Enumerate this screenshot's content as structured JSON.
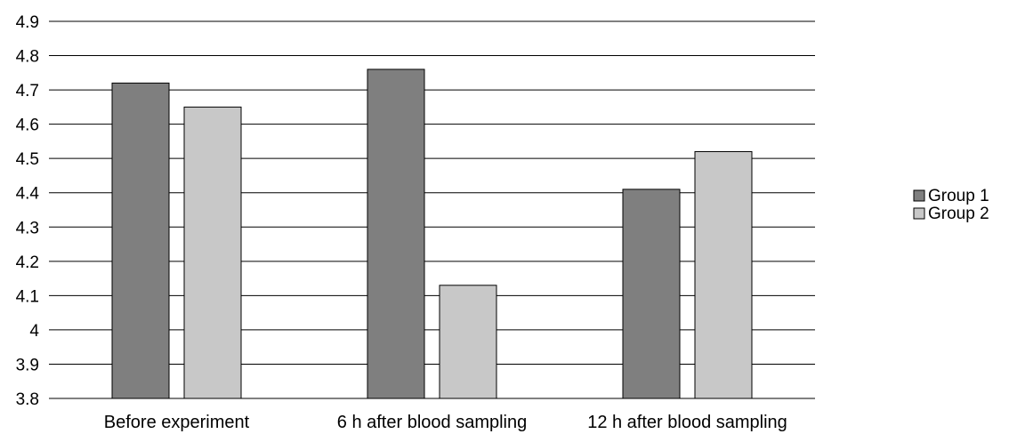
{
  "chart_data": {
    "type": "bar",
    "categories": [
      "Before experiment",
      "6 h after blood sampling",
      "12 h after blood sampling"
    ],
    "series": [
      {
        "name": "Group 1",
        "values": [
          4.72,
          4.76,
          4.41
        ],
        "color": "#7f7f7f"
      },
      {
        "name": "Group 2",
        "values": [
          4.65,
          4.13,
          4.52
        ],
        "color": "#c8c8c8"
      }
    ],
    "ylim": [
      3.8,
      4.9
    ],
    "yticks": [
      "3.8",
      "3.9",
      "4",
      "4.1",
      "4.2",
      "4.3",
      "4.4",
      "4.5",
      "4.6",
      "4.7",
      "4.8",
      "4.9"
    ],
    "grid": true,
    "legend": "right",
    "title": "",
    "xlabel": "",
    "ylabel": ""
  }
}
